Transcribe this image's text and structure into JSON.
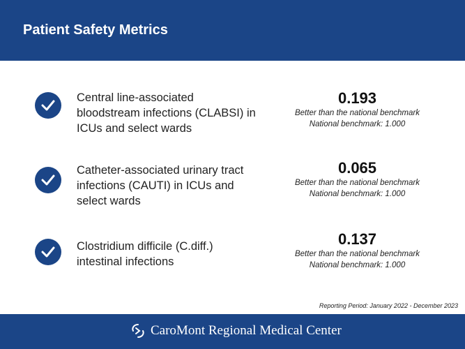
{
  "header": {
    "title": "Patient Safety Metrics"
  },
  "metrics": [
    {
      "description": "Central line-associated bloodstream infections (CLABSI) in ICUs and select wards",
      "value": "0.193",
      "status": "Better than the national benchmark",
      "benchmark": "National benchmark: 1.000"
    },
    {
      "description": "Catheter-associated urinary tract infections (CAUTI) in ICUs and select wards",
      "value": "0.065",
      "status": "Better than the national benchmark",
      "benchmark": "National benchmark: 1.000"
    },
    {
      "description": "Clostridium difficile (C.diff.) intestinal infections",
      "value": "0.137",
      "status": "Better than the national benchmark",
      "benchmark": "National benchmark: 1.000"
    }
  ],
  "reporting_period": "Reporting Period: January 2022 - December 2023",
  "footer": {
    "logo_text": "CaroMont Regional Medical Center"
  },
  "colors": {
    "brand": "#1b4587"
  }
}
